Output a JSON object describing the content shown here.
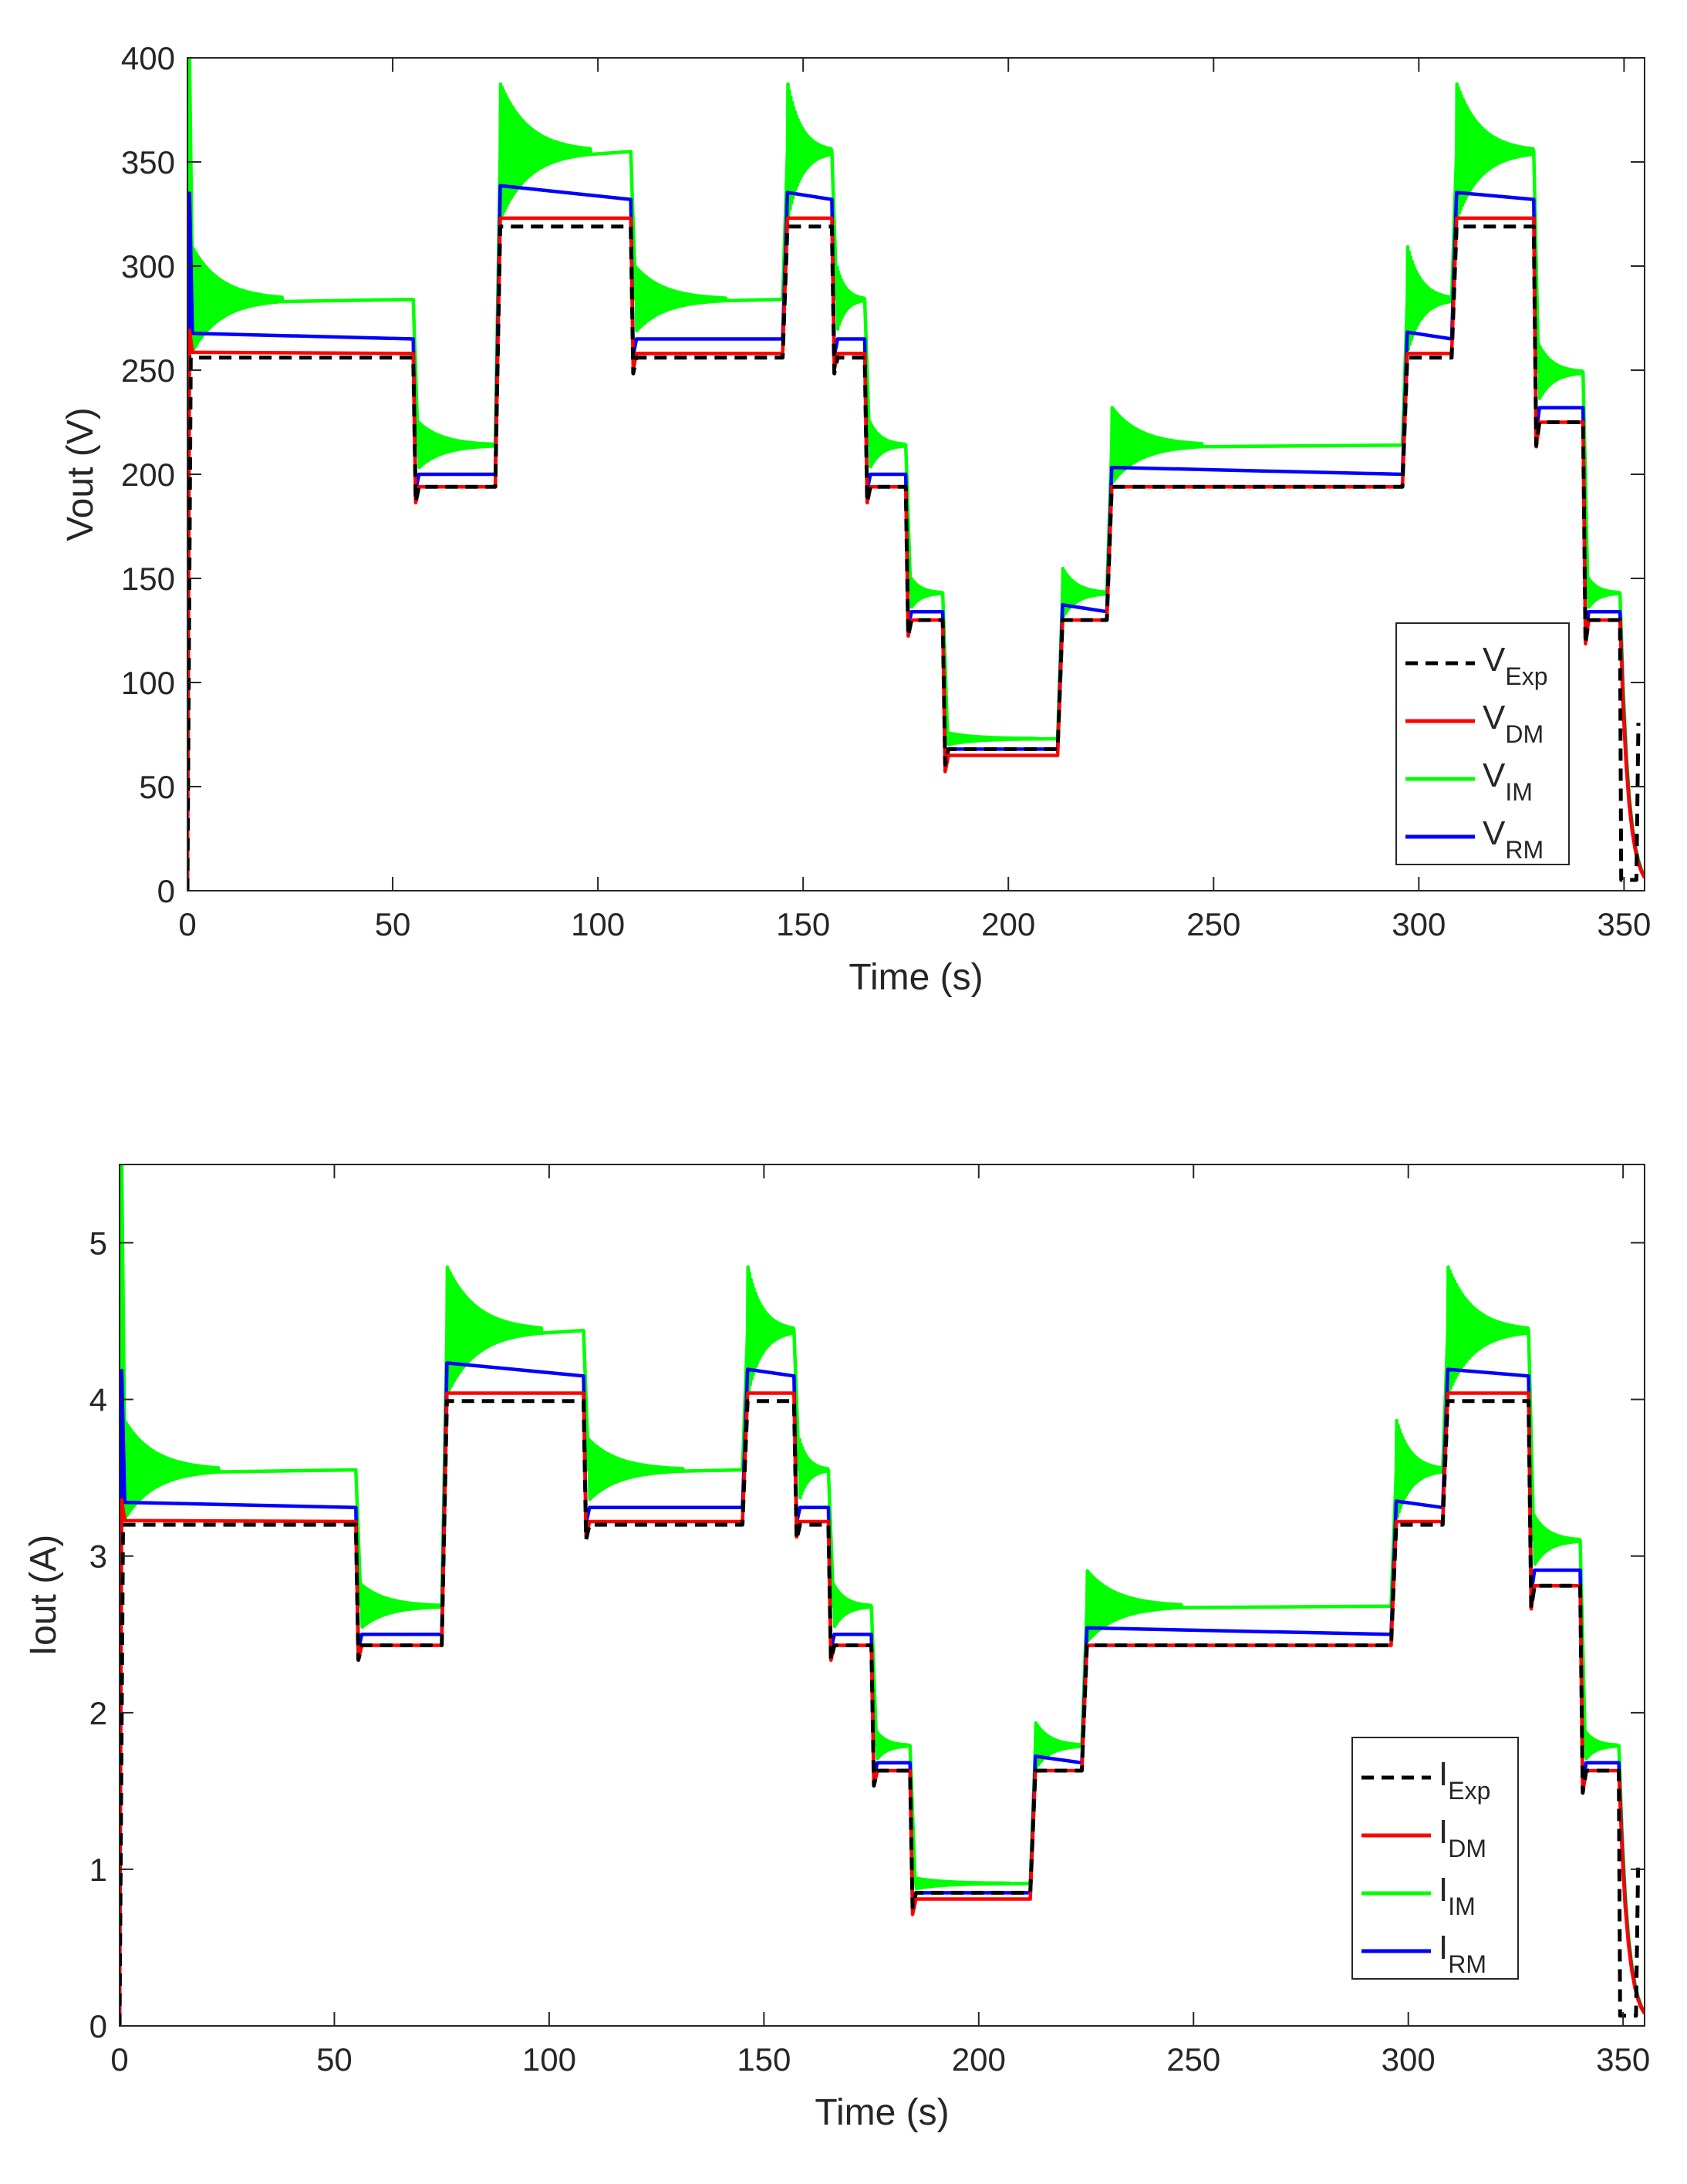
{
  "chart_data": [
    {
      "type": "line",
      "id": "voltage",
      "xlabel": "Time (s)",
      "ylabel": "Vout (V)",
      "xlim": [
        0,
        355
      ],
      "ylim": [
        0,
        400
      ],
      "xticks": [
        0,
        50,
        100,
        150,
        200,
        250,
        300,
        350
      ],
      "yticks": [
        0,
        50,
        100,
        150,
        200,
        250,
        300,
        350,
        400
      ],
      "legend_position": "bottom-right",
      "steps": [
        {
          "t0": 0,
          "t1": 55,
          "exp": 256,
          "dm": 258,
          "im": 284,
          "rm": 265
        },
        {
          "t0": 55,
          "t1": 75,
          "exp": 194,
          "dm": 194,
          "im": 214,
          "rm": 200
        },
        {
          "t0": 75,
          "t1": 108,
          "exp": 319,
          "dm": 323,
          "im": 355,
          "rm": 332
        },
        {
          "t0": 108,
          "t1": 145,
          "exp": 256,
          "dm": 258,
          "im": 284,
          "rm": 265
        },
        {
          "t0": 145,
          "t1": 157,
          "exp": 319,
          "dm": 323,
          "im": 355,
          "rm": 332
        },
        {
          "t0": 157,
          "t1": 165,
          "exp": 256,
          "dm": 258,
          "im": 284,
          "rm": 265
        },
        {
          "t0": 165,
          "t1": 175,
          "exp": 194,
          "dm": 194,
          "im": 214,
          "rm": 200
        },
        {
          "t0": 175,
          "t1": 184,
          "exp": 130,
          "dm": 130,
          "im": 143,
          "rm": 134
        },
        {
          "t0": 184,
          "t1": 212,
          "exp": 68,
          "dm": 65,
          "im": 73,
          "rm": 68
        },
        {
          "t0": 212,
          "t1": 224,
          "exp": 130,
          "dm": 130,
          "im": 143,
          "rm": 134
        },
        {
          "t0": 224,
          "t1": 296,
          "exp": 194,
          "dm": 194,
          "im": 214,
          "rm": 200
        },
        {
          "t0": 296,
          "t1": 308,
          "exp": 256,
          "dm": 258,
          "im": 284,
          "rm": 265
        },
        {
          "t0": 308,
          "t1": 328,
          "exp": 319,
          "dm": 323,
          "im": 355,
          "rm": 332
        },
        {
          "t0": 328,
          "t1": 340,
          "exp": 225,
          "dm": 225,
          "im": 249,
          "rm": 232
        },
        {
          "t0": 340,
          "t1": 349,
          "exp": 130,
          "dm": 130,
          "im": 143,
          "rm": 134
        }
      ],
      "series": [
        {
          "name": "V",
          "sub": "Exp",
          "color": "#000000",
          "dash": true
        },
        {
          "name": "V",
          "sub": "DM",
          "color": "#ff0000",
          "dash": false
        },
        {
          "name": "V",
          "sub": "IM",
          "color": "#00ff00",
          "dash": false
        },
        {
          "name": "V",
          "sub": "RM",
          "color": "#0000ff",
          "dash": false
        }
      ]
    },
    {
      "type": "line",
      "id": "current",
      "xlabel": "Time (s)",
      "ylabel": "Iout (A)",
      "xlim": [
        0,
        355
      ],
      "ylim": [
        0,
        5.5
      ],
      "xticks": [
        0,
        50,
        100,
        150,
        200,
        250,
        300,
        350
      ],
      "yticks": [
        0,
        1,
        2,
        3,
        4,
        5
      ],
      "legend_position": "bottom-right",
      "steps": [
        {
          "t0": 0,
          "t1": 55,
          "exp": 3.2,
          "dm": 3.22,
          "im": 3.55,
          "rm": 3.31
        },
        {
          "t0": 55,
          "t1": 75,
          "exp": 2.43,
          "dm": 2.43,
          "im": 2.68,
          "rm": 2.5
        },
        {
          "t0": 75,
          "t1": 108,
          "exp": 3.99,
          "dm": 4.04,
          "im": 4.44,
          "rm": 4.15
        },
        {
          "t0": 108,
          "t1": 145,
          "exp": 3.2,
          "dm": 3.22,
          "im": 3.55,
          "rm": 3.31
        },
        {
          "t0": 145,
          "t1": 157,
          "exp": 3.99,
          "dm": 4.04,
          "im": 4.44,
          "rm": 4.15
        },
        {
          "t0": 157,
          "t1": 165,
          "exp": 3.2,
          "dm": 3.22,
          "im": 3.55,
          "rm": 3.31
        },
        {
          "t0": 165,
          "t1": 175,
          "exp": 2.43,
          "dm": 2.43,
          "im": 2.68,
          "rm": 2.5
        },
        {
          "t0": 175,
          "t1": 184,
          "exp": 1.63,
          "dm": 1.63,
          "im": 1.79,
          "rm": 1.68
        },
        {
          "t0": 184,
          "t1": 212,
          "exp": 0.85,
          "dm": 0.81,
          "im": 0.91,
          "rm": 0.85
        },
        {
          "t0": 212,
          "t1": 224,
          "exp": 1.63,
          "dm": 1.63,
          "im": 1.79,
          "rm": 1.68
        },
        {
          "t0": 224,
          "t1": 296,
          "exp": 2.43,
          "dm": 2.43,
          "im": 2.68,
          "rm": 2.5
        },
        {
          "t0": 296,
          "t1": 308,
          "exp": 3.2,
          "dm": 3.22,
          "im": 3.55,
          "rm": 3.31
        },
        {
          "t0": 308,
          "t1": 328,
          "exp": 3.99,
          "dm": 4.04,
          "im": 4.44,
          "rm": 4.15
        },
        {
          "t0": 328,
          "t1": 340,
          "exp": 2.81,
          "dm": 2.81,
          "im": 3.1,
          "rm": 2.91
        },
        {
          "t0": 340,
          "t1": 349,
          "exp": 1.63,
          "dm": 1.63,
          "im": 1.79,
          "rm": 1.68
        }
      ],
      "series": [
        {
          "name": "I",
          "sub": "Exp",
          "color": "#000000",
          "dash": true
        },
        {
          "name": "I",
          "sub": "DM",
          "color": "#ff0000",
          "dash": false
        },
        {
          "name": "I",
          "sub": "IM",
          "color": "#00ff00",
          "dash": false
        },
        {
          "name": "I",
          "sub": "RM",
          "color": "#0000ff",
          "dash": false
        }
      ]
    }
  ]
}
